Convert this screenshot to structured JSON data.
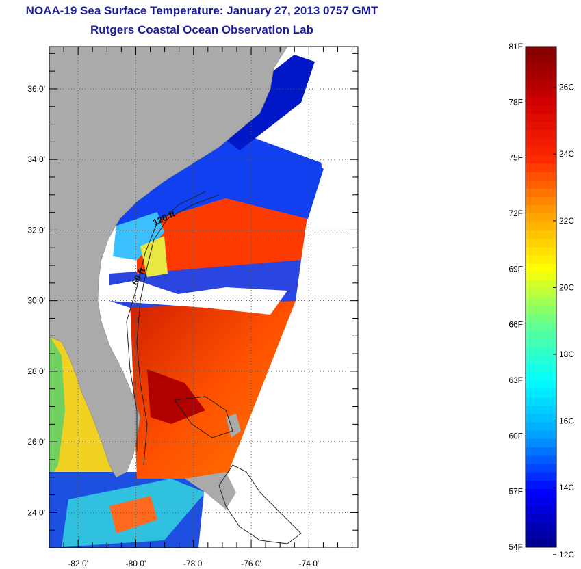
{
  "title": {
    "line1": "NOAA-19 Sea Surface Temperature:  January 27, 2013 0757 GMT",
    "line2": "Rutgers Coastal Ocean Observation Lab"
  },
  "map": {
    "lat_labels": [
      "36 0'",
      "34 0'",
      "32 0'",
      "30 0'",
      "28 0'",
      "26 0'",
      "24 0'"
    ],
    "lon_labels": [
      "-82 0'",
      "-80 0'",
      "-78 0'",
      "-76 0'",
      "-74 0'"
    ],
    "lat_values": [
      36,
      34,
      32,
      30,
      28,
      26,
      24
    ],
    "lon_values": [
      -82,
      -80,
      -78,
      -76,
      -74
    ],
    "lon_range": [
      -83.0,
      -72.3
    ],
    "lat_range": [
      23.0,
      37.2
    ],
    "isobath_labels": [
      "120 ft",
      "60 ft"
    ],
    "colors": {
      "land": "#aaaaaa",
      "no_data": "#ffffff",
      "grid": "#555555"
    }
  },
  "colorbar": {
    "fahrenheit_labels": [
      "81F",
      "78F",
      "75F",
      "72F",
      "69F",
      "66F",
      "63F",
      "60F",
      "57F",
      "54F"
    ],
    "fahrenheit_values": [
      81,
      78,
      75,
      72,
      69,
      66,
      63,
      60,
      57,
      54
    ],
    "celsius_labels": [
      "26C",
      "24C",
      "22C",
      "20C",
      "18C",
      "16C",
      "14C",
      "12C"
    ],
    "celsius_values": [
      26,
      24,
      22,
      20,
      18,
      16,
      14,
      12
    ],
    "range_f": [
      54,
      81
    ],
    "colors": [
      "#00008c",
      "#0000ff",
      "#00a0ff",
      "#00ffff",
      "#60ff90",
      "#ffff00",
      "#ffa000",
      "#ff2800",
      "#d00000",
      "#800000"
    ]
  }
}
